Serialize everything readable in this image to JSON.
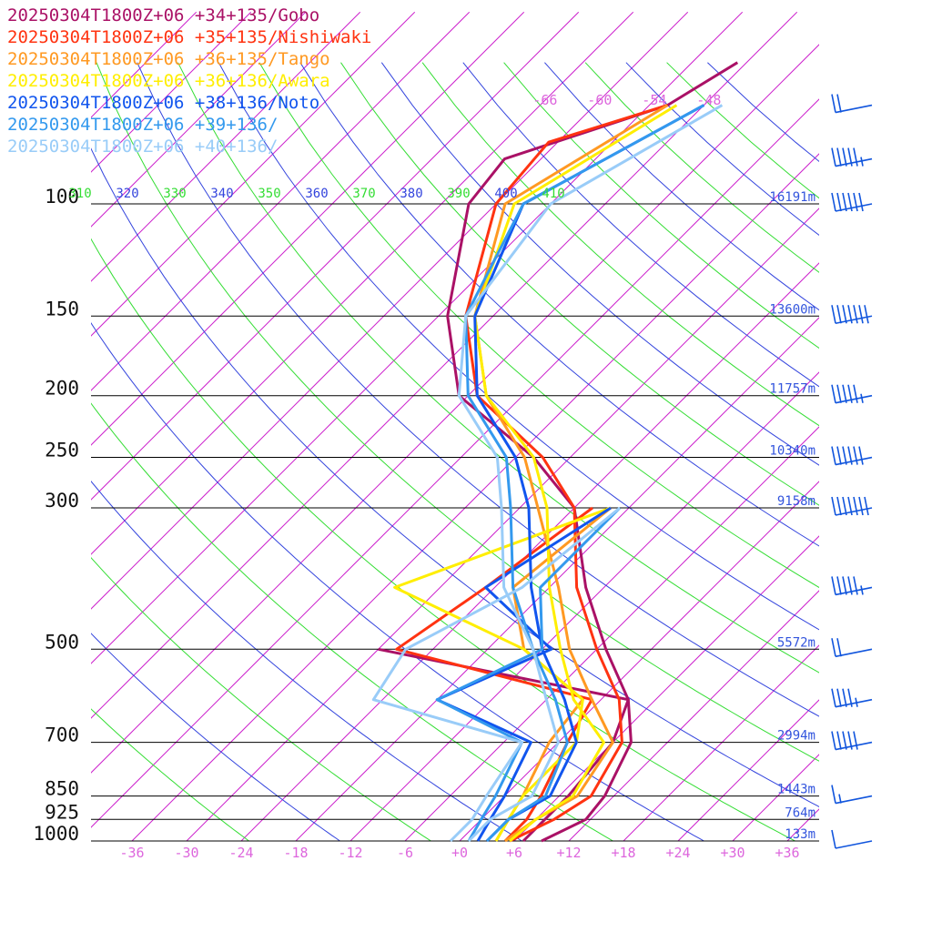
{
  "chart_data": {
    "type": "line",
    "subtype": "skew-T log-P sounding",
    "grid": true,
    "legend_position": "top-left",
    "colors": {
      "isobar": "#000000",
      "isotherm": "#cc22cc",
      "dry_adiabat": "#3344dd",
      "moist_adiabat": "#33dd33",
      "axis_label": "#dd66dd",
      "height_label": "#3355dd",
      "wind": "#1155dd"
    },
    "pressure_axis": {
      "levels": [
        100,
        150,
        200,
        250,
        300,
        500,
        700,
        850,
        925,
        1000
      ],
      "labels": [
        "100",
        "150",
        "200",
        "250",
        "300",
        "500",
        "700",
        "850",
        "925",
        "1000"
      ],
      "range_hpa": [
        1000,
        100
      ]
    },
    "temperature_axis": {
      "ticks": [
        -36,
        -30,
        -24,
        -18,
        -12,
        -6,
        0,
        6,
        12,
        18,
        24,
        30,
        36
      ],
      "labels": [
        "-36",
        "-30",
        "-24",
        "-18",
        "-12",
        "-6",
        "+0",
        "+6",
        "+12",
        "+18",
        "+24",
        "+30",
        "+36"
      ],
      "upper_labels": [
        "-66",
        "-60",
        "-54",
        "-48"
      ]
    },
    "theta_labels": [
      {
        "text": "310",
        "family": "moist"
      },
      {
        "text": "320",
        "family": "dry"
      },
      {
        "text": "330",
        "family": "moist"
      },
      {
        "text": "340",
        "family": "dry"
      },
      {
        "text": "350",
        "family": "moist"
      },
      {
        "text": "360",
        "family": "dry"
      },
      {
        "text": "370",
        "family": "moist"
      },
      {
        "text": "380",
        "family": "dry"
      },
      {
        "text": "390",
        "family": "moist"
      },
      {
        "text": "400",
        "family": "dry"
      },
      {
        "text": "410",
        "family": "moist"
      }
    ],
    "heights": [
      {
        "p": 100,
        "text": "16191m"
      },
      {
        "p": 150,
        "text": "13600m"
      },
      {
        "p": 200,
        "text": "11757m"
      },
      {
        "p": 250,
        "text": "10340m"
      },
      {
        "p": 300,
        "text": "9158m"
      },
      {
        "p": 500,
        "text": "5572m"
      },
      {
        "p": 700,
        "text": "2994m"
      },
      {
        "p": 850,
        "text": "1443m"
      },
      {
        "p": 925,
        "text": "764m"
      },
      {
        "p": 1000,
        "text": "133m"
      }
    ],
    "series": [
      {
        "name": "20250304T1800Z+06 +34+135/Gobo",
        "color": "#aa1166",
        "temperature": [
          [
            1000,
            9
          ],
          [
            925,
            11.5
          ],
          [
            850,
            11
          ],
          [
            700,
            8
          ],
          [
            600,
            3
          ],
          [
            500,
            -5
          ],
          [
            400,
            -14
          ],
          [
            300,
            -24
          ],
          [
            250,
            -34
          ],
          [
            200,
            -49
          ],
          [
            150,
            -59
          ],
          [
            100,
            -69
          ],
          [
            85,
            -70
          ],
          [
            70,
            -58
          ],
          [
            60,
            -55
          ]
        ],
        "dewpoint": [
          [
            1000,
            7
          ],
          [
            925,
            7
          ],
          [
            850,
            7
          ],
          [
            700,
            6
          ],
          [
            600,
            3
          ],
          [
            500,
            -30
          ]
        ]
      },
      {
        "name": "20250304T1800Z+06 +35+135/Nishiwaki",
        "color": "#ff3311",
        "temperature": [
          [
            1000,
            5.5
          ],
          [
            925,
            8
          ],
          [
            850,
            9.5
          ],
          [
            700,
            7
          ],
          [
            600,
            2
          ],
          [
            500,
            -6
          ],
          [
            400,
            -15
          ],
          [
            300,
            -24
          ],
          [
            250,
            -33
          ],
          [
            200,
            -47
          ],
          [
            150,
            -57
          ],
          [
            100,
            -66
          ],
          [
            80,
            -67
          ],
          [
            70,
            -58
          ]
        ],
        "dewpoint": [
          [
            1000,
            5
          ],
          [
            925,
            5
          ],
          [
            850,
            4
          ],
          [
            700,
            1
          ],
          [
            600,
            -1
          ],
          [
            500,
            -28
          ],
          [
            400,
            -25
          ],
          [
            300,
            -22
          ]
        ]
      },
      {
        "name": "20250304T1800Z+06 +36+135/Tango",
        "color": "#ff9922",
        "temperature": [
          [
            1000,
            5
          ],
          [
            925,
            6
          ],
          [
            850,
            8
          ],
          [
            700,
            6
          ],
          [
            600,
            -1
          ],
          [
            500,
            -9
          ],
          [
            400,
            -17
          ],
          [
            300,
            -28
          ],
          [
            250,
            -35
          ],
          [
            200,
            -46
          ],
          [
            150,
            -56
          ],
          [
            100,
            -65
          ],
          [
            70,
            -58
          ]
        ],
        "dewpoint": [
          [
            1000,
            4
          ],
          [
            925,
            3
          ],
          [
            850,
            2
          ],
          [
            700,
            -1
          ],
          [
            600,
            -2
          ],
          [
            500,
            -14
          ],
          [
            400,
            -22
          ],
          [
            300,
            -20
          ]
        ]
      },
      {
        "name": "20250304T1800Z+06 +36+136/Awara",
        "color": "#ffee00",
        "temperature": [
          [
            1000,
            5.5
          ],
          [
            925,
            6
          ],
          [
            850,
            7.5
          ],
          [
            700,
            5
          ],
          [
            600,
            -3
          ],
          [
            500,
            -10
          ],
          [
            400,
            -18
          ],
          [
            300,
            -27
          ],
          [
            250,
            -34
          ],
          [
            200,
            -46
          ],
          [
            150,
            -56
          ],
          [
            100,
            -64
          ],
          [
            70,
            -57
          ]
        ],
        "dewpoint": [
          [
            1000,
            4
          ],
          [
            925,
            3
          ],
          [
            850,
            2
          ],
          [
            700,
            2
          ],
          [
            600,
            -2
          ],
          [
            500,
            -14
          ],
          [
            400,
            -35
          ],
          [
            300,
            -20
          ]
        ]
      },
      {
        "name": "20250304T1800Z+06 +38+136/Noto",
        "color": "#1155ee",
        "temperature": [
          [
            1000,
            3
          ],
          [
            925,
            3
          ],
          [
            850,
            5
          ],
          [
            700,
            2
          ],
          [
            600,
            -4
          ],
          [
            500,
            -12
          ],
          [
            400,
            -20
          ],
          [
            300,
            -29
          ],
          [
            250,
            -36
          ],
          [
            200,
            -47
          ],
          [
            150,
            -56
          ],
          [
            100,
            -63
          ],
          [
            70,
            -54
          ]
        ],
        "dewpoint": [
          [
            1000,
            2
          ],
          [
            925,
            1
          ],
          [
            850,
            0
          ],
          [
            700,
            -3
          ],
          [
            600,
            -18
          ],
          [
            500,
            -11
          ],
          [
            400,
            -25
          ],
          [
            300,
            -20
          ]
        ]
      },
      {
        "name": "20250304T1800Z+06 +39+136/",
        "color": "#3399ee",
        "temperature": [
          [
            1000,
            3
          ],
          [
            925,
            3
          ],
          [
            850,
            4.5
          ],
          [
            700,
            1
          ],
          [
            600,
            -5
          ],
          [
            500,
            -13
          ],
          [
            400,
            -22
          ],
          [
            300,
            -31
          ],
          [
            250,
            -37
          ],
          [
            200,
            -48
          ],
          [
            150,
            -57
          ],
          [
            100,
            -63
          ],
          [
            70,
            -54
          ]
        ],
        "dewpoint": [
          [
            1000,
            1
          ],
          [
            925,
            0
          ],
          [
            850,
            -1
          ],
          [
            700,
            -4
          ],
          [
            600,
            -18
          ],
          [
            500,
            -12
          ],
          [
            400,
            -19
          ],
          [
            300,
            -19
          ]
        ]
      },
      {
        "name": "20250304T1800Z+06 +40+136/",
        "color": "#99ccf8",
        "temperature": [
          [
            1000,
            1
          ],
          [
            925,
            1
          ],
          [
            850,
            3
          ],
          [
            700,
            0
          ],
          [
            600,
            -6
          ],
          [
            500,
            -13
          ],
          [
            400,
            -23
          ],
          [
            300,
            -32
          ],
          [
            250,
            -38
          ],
          [
            200,
            -49
          ],
          [
            150,
            -57
          ],
          [
            100,
            -60
          ],
          [
            70,
            -52
          ]
        ],
        "dewpoint": [
          [
            1000,
            -1
          ],
          [
            925,
            -1
          ],
          [
            850,
            -2
          ],
          [
            700,
            -4
          ],
          [
            600,
            -25
          ],
          [
            500,
            -27
          ],
          [
            400,
            -21
          ],
          [
            300,
            -19
          ]
        ]
      }
    ],
    "wind_barbs": [
      {
        "p": 70,
        "kt": 20
      },
      {
        "p": 85,
        "kt": 55
      },
      {
        "p": 100,
        "kt": 60
      },
      {
        "p": 150,
        "kt": 70
      },
      {
        "p": 200,
        "kt": 55
      },
      {
        "p": 250,
        "kt": 60
      },
      {
        "p": 300,
        "kt": 70
      },
      {
        "p": 400,
        "kt": 55
      },
      {
        "p": 500,
        "kt": 20
      },
      {
        "p": 600,
        "kt": 45
      },
      {
        "p": 700,
        "kt": 50
      },
      {
        "p": 850,
        "kt": 15
      },
      {
        "p": 1000,
        "kt": 10
      }
    ]
  }
}
